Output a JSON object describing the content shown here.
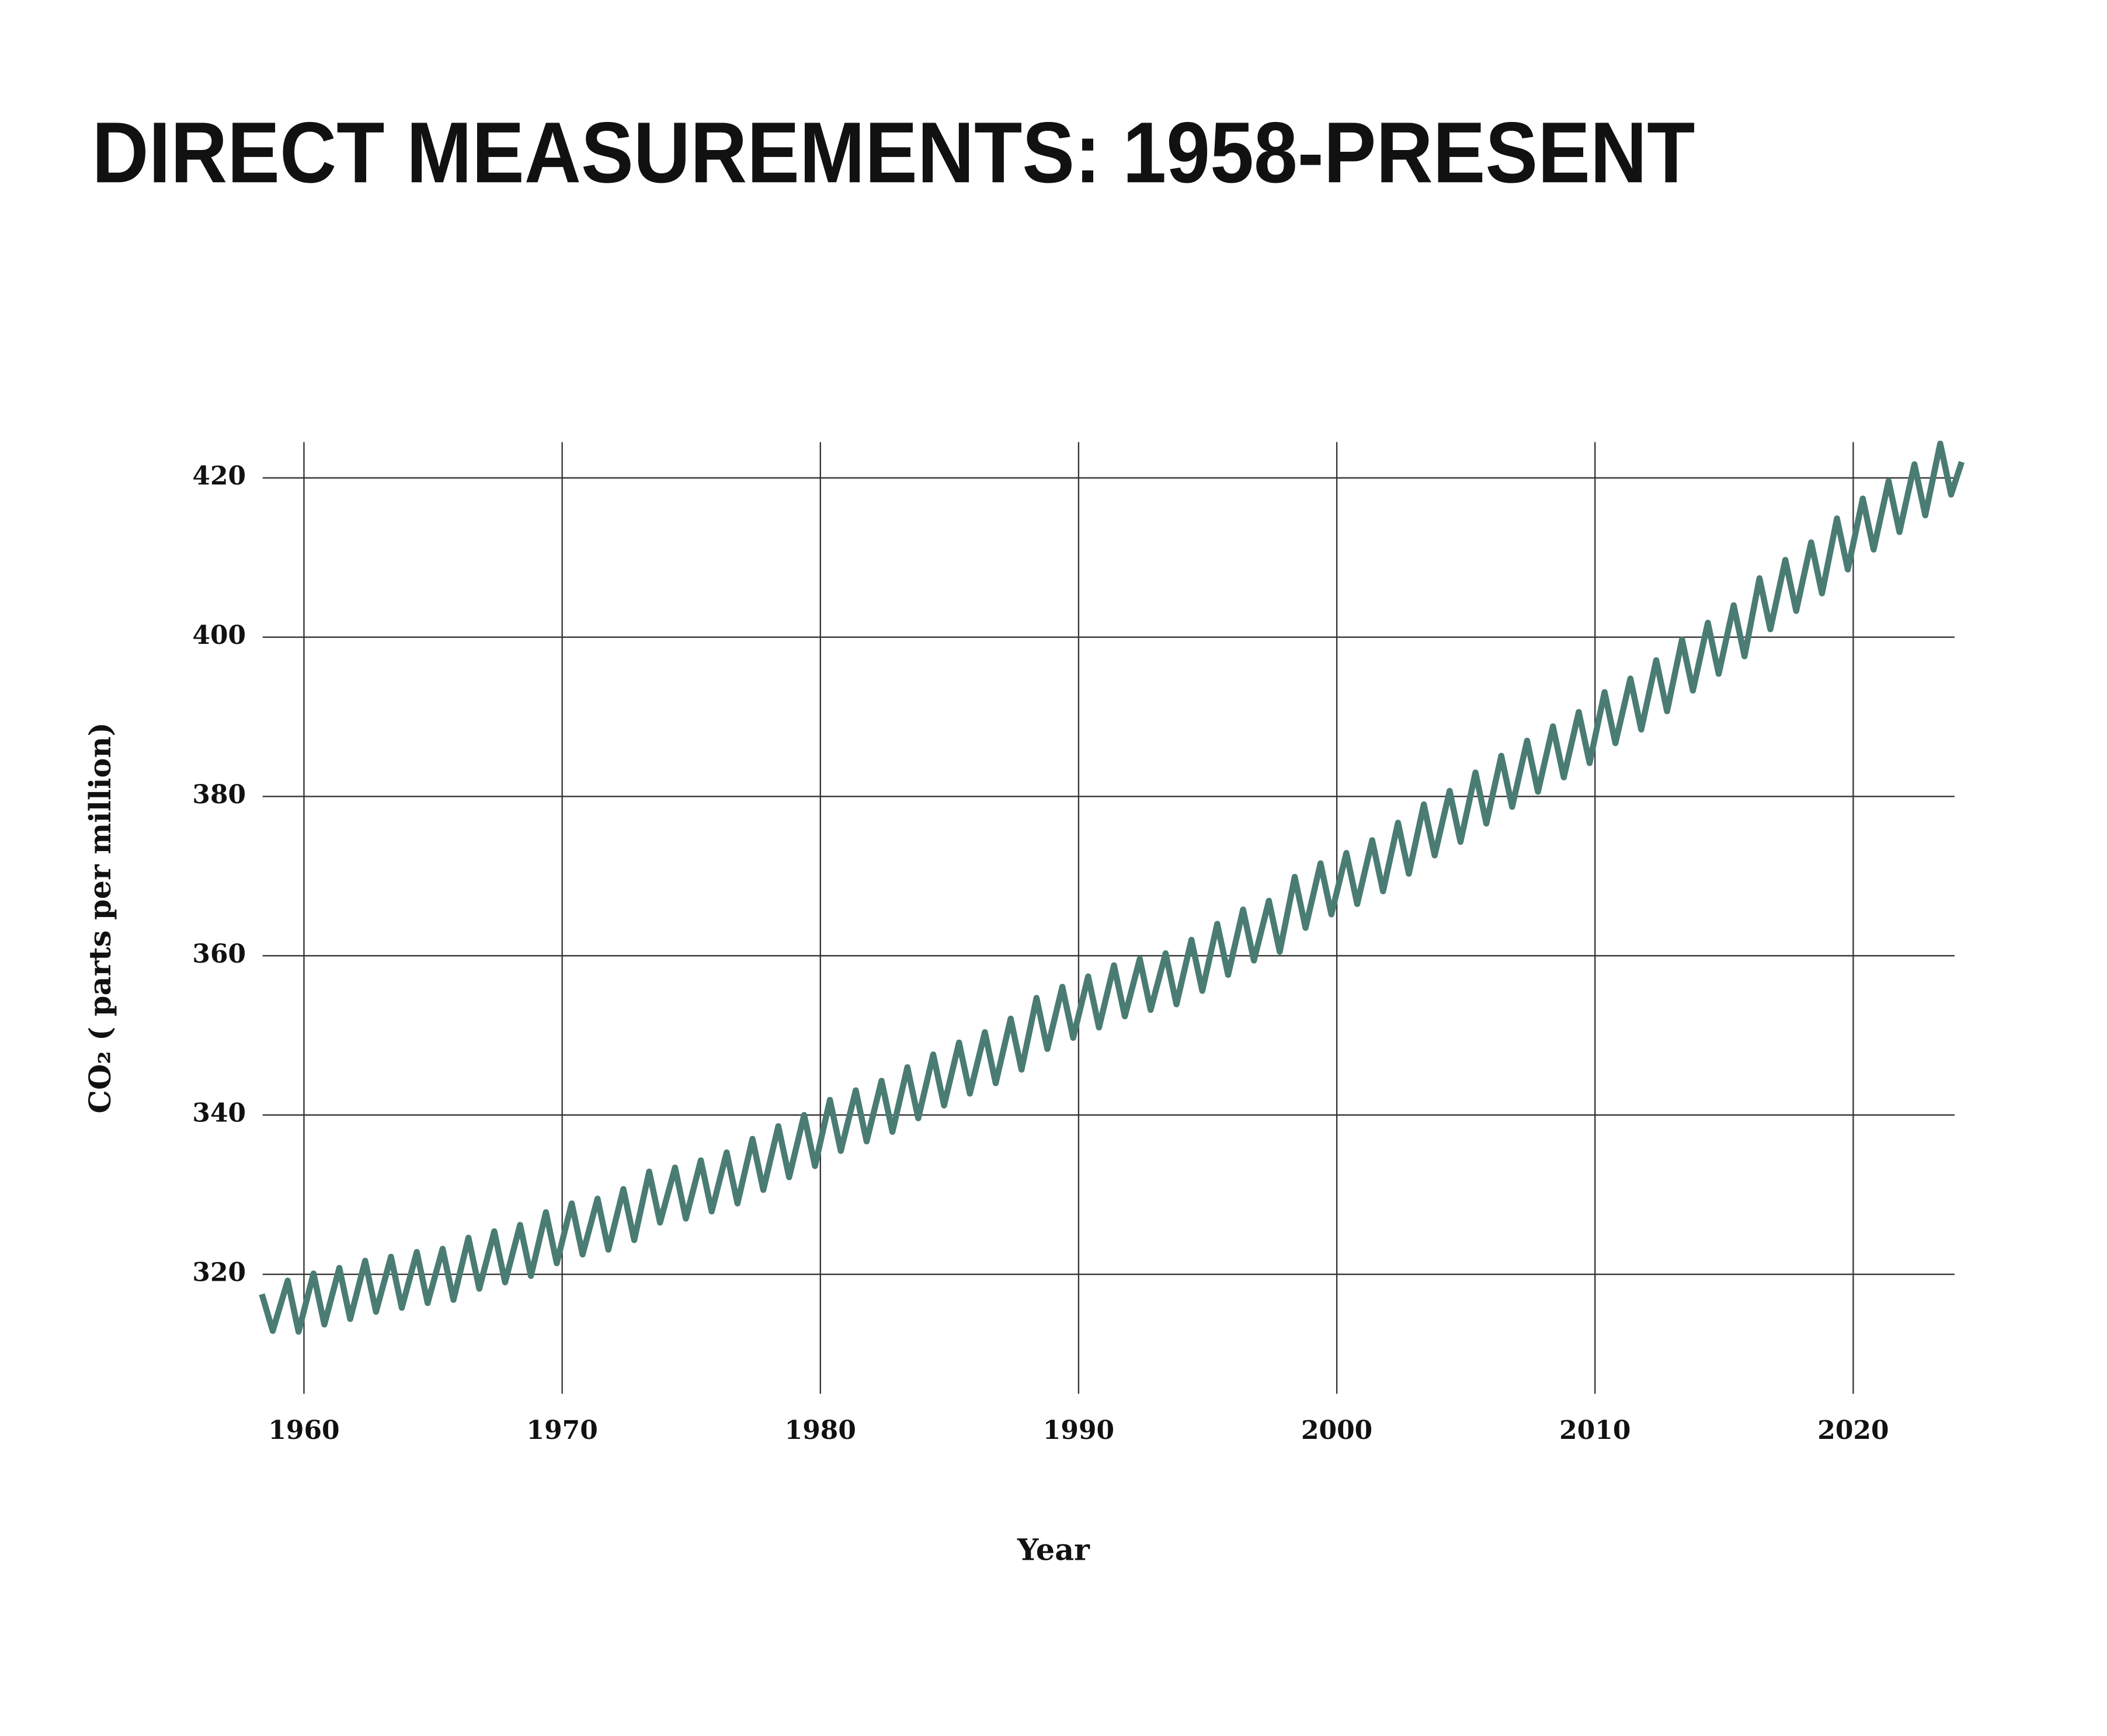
{
  "chart_data": {
    "type": "line",
    "title": "DIRECT MEASUREMENTS: 1958-PRESENT",
    "x_label": "Year",
    "y_label": "CO₂ ( parts per million)",
    "color": "#4a7c74",
    "grid": true,
    "xlim": [
      1958.4,
      2024.5
    ],
    "xticks": [
      1960,
      1970,
      1980,
      1990,
      2000,
      2010,
      2020
    ],
    "ylim": [
      305,
      425
    ],
    "yticks": [
      320,
      340,
      360,
      380,
      400,
      420
    ],
    "x": [
      1958.37,
      1958.79,
      1959.37,
      1959.79,
      1960.37,
      1960.79,
      1961.37,
      1961.79,
      1962.37,
      1962.79,
      1963.37,
      1963.79,
      1964.37,
      1964.79,
      1965.37,
      1965.79,
      1966.37,
      1966.79,
      1967.37,
      1967.79,
      1968.37,
      1968.79,
      1969.37,
      1969.79,
      1970.37,
      1970.79,
      1971.37,
      1971.79,
      1972.37,
      1972.79,
      1973.37,
      1973.79,
      1974.37,
      1974.79,
      1975.37,
      1975.79,
      1976.37,
      1976.79,
      1977.37,
      1977.79,
      1978.37,
      1978.79,
      1979.37,
      1979.79,
      1980.37,
      1980.79,
      1981.37,
      1981.79,
      1982.37,
      1982.79,
      1983.37,
      1983.79,
      1984.37,
      1984.79,
      1985.37,
      1985.79,
      1986.37,
      1986.79,
      1987.37,
      1987.79,
      1988.37,
      1988.79,
      1989.37,
      1989.79,
      1990.37,
      1990.79,
      1991.37,
      1991.79,
      1992.37,
      1992.79,
      1993.37,
      1993.79,
      1994.37,
      1994.79,
      1995.37,
      1995.79,
      1996.37,
      1996.79,
      1997.37,
      1997.79,
      1998.37,
      1998.79,
      1999.37,
      1999.79,
      2000.37,
      2000.79,
      2001.37,
      2001.79,
      2002.37,
      2002.79,
      2003.37,
      2003.79,
      2004.37,
      2004.79,
      2005.37,
      2005.79,
      2006.37,
      2006.79,
      2007.37,
      2007.79,
      2008.37,
      2008.79,
      2009.37,
      2009.79,
      2010.37,
      2010.79,
      2011.37,
      2011.79,
      2012.37,
      2012.79,
      2013.37,
      2013.79,
      2014.37,
      2014.79,
      2015.37,
      2015.79,
      2016.37,
      2016.79,
      2017.37,
      2017.79,
      2018.37,
      2018.79,
      2019.37,
      2019.79,
      2020.37,
      2020.79,
      2021.37,
      2021.79,
      2022.37,
      2022.79,
      2023.37,
      2023.79,
      2024.2
    ],
    "values": [
      317.5,
      312.9,
      319.2,
      312.8,
      320.1,
      313.7,
      320.8,
      314.4,
      321.7,
      315.3,
      322.2,
      315.8,
      322.8,
      316.4,
      323.2,
      316.8,
      324.6,
      318.2,
      325.4,
      319.0,
      326.2,
      319.8,
      327.8,
      321.4,
      328.9,
      322.5,
      329.5,
      323.1,
      330.7,
      324.3,
      332.9,
      326.5,
      333.4,
      327.0,
      334.3,
      327.9,
      335.3,
      328.9,
      337.0,
      330.6,
      338.6,
      332.2,
      340.0,
      333.6,
      341.9,
      335.5,
      343.1,
      336.7,
      344.3,
      337.9,
      346.0,
      339.6,
      347.6,
      341.2,
      349.1,
      342.7,
      350.4,
      344.0,
      352.1,
      345.7,
      354.7,
      348.3,
      356.1,
      349.7,
      357.4,
      351.0,
      358.8,
      352.4,
      359.6,
      353.2,
      360.3,
      353.9,
      362.0,
      355.6,
      364.0,
      357.6,
      365.8,
      359.4,
      366.9,
      360.5,
      369.9,
      363.5,
      371.6,
      365.2,
      372.9,
      366.5,
      374.5,
      368.1,
      376.7,
      370.3,
      379.0,
      372.6,
      380.7,
      374.3,
      383.0,
      376.6,
      385.1,
      378.7,
      387.0,
      380.6,
      388.8,
      382.4,
      390.6,
      384.2,
      393.1,
      386.7,
      394.8,
      388.4,
      397.1,
      390.7,
      399.7,
      393.3,
      401.8,
      395.4,
      404.0,
      397.6,
      407.4,
      401.0,
      409.7,
      403.3,
      411.9,
      405.5,
      414.9,
      408.5,
      417.4,
      411.0,
      419.6,
      413.2,
      421.7,
      415.3,
      424.3,
      417.9,
      422.0
    ]
  }
}
